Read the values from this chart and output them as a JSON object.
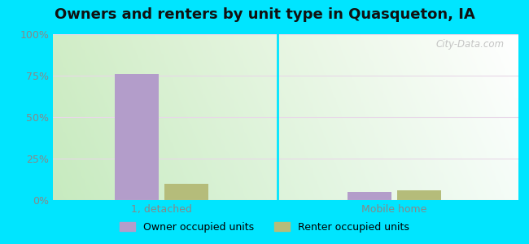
{
  "title": "Owners and renters by unit type in Quasqueton, IA",
  "title_fontsize": 13,
  "categories": [
    "1, detached",
    "Mobile home"
  ],
  "owner_values": [
    76,
    5
  ],
  "renter_values": [
    10,
    6
  ],
  "owner_color": "#b39dca",
  "renter_color": "#b5bc7a",
  "bar_width": 0.28,
  "ylim": [
    0,
    100
  ],
  "yticks": [
    0,
    25,
    50,
    75,
    100
  ],
  "yticklabels": [
    "0%",
    "25%",
    "50%",
    "75%",
    "100%"
  ],
  "bg_color_topleft": "#d6f0cc",
  "bg_color_topright": "#f0fef5",
  "bg_color_bottomleft": "#c8ecc0",
  "bg_color_bottomright": "#e8fde8",
  "outer_background": "#00e5ff",
  "watermark": "City-Data.com",
  "legend_owner": "Owner occupied units",
  "legend_renter": "Renter occupied units",
  "tick_fontsize": 9,
  "grid_color": "#ddeecc"
}
